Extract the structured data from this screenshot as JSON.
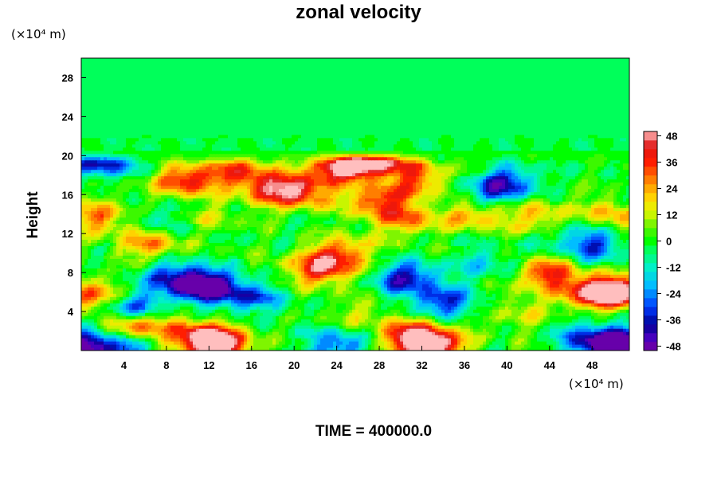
{
  "chart_data": {
    "type": "heatmap",
    "title": "zonal velocity",
    "ylabel": "Height",
    "xlabel": "",
    "x_unit": "(×10⁴ m)",
    "y_unit": "(×10⁴ m)",
    "footer": "TIME = 400000.0",
    "xlim": [
      0,
      51.5
    ],
    "ylim": [
      0,
      30
    ],
    "x_ticks": [
      4,
      8,
      12,
      16,
      20,
      24,
      28,
      32,
      36,
      40,
      44,
      48
    ],
    "y_ticks": [
      4,
      8,
      12,
      16,
      20,
      24,
      28
    ],
    "colorbar": {
      "min": -50,
      "max": 50,
      "step": 4,
      "tick_values": [
        48,
        36,
        24,
        12,
        0,
        -12,
        -24,
        -36,
        -48
      ]
    },
    "features": [
      {
        "x": 13,
        "y": 0.6,
        "v": 50
      },
      {
        "x": 11,
        "y": 1.5,
        "v": 38
      },
      {
        "x": 33,
        "y": 0.6,
        "v": 50
      },
      {
        "x": 31,
        "y": 1.6,
        "v": 38
      },
      {
        "x": 0,
        "y": 0.4,
        "v": -48
      },
      {
        "x": 4,
        "y": 0.5,
        "v": -30
      },
      {
        "x": 24,
        "y": 0.5,
        "v": -30
      },
      {
        "x": 51,
        "y": 0.8,
        "v": -48
      },
      {
        "x": 48,
        "y": 1.0,
        "v": -36
      },
      {
        "x": 5,
        "y": 2.4,
        "v": 40
      },
      {
        "x": 4.5,
        "y": 4.5,
        "v": -34
      },
      {
        "x": 12,
        "y": 6.5,
        "v": -50
      },
      {
        "x": 9,
        "y": 7.5,
        "v": -36
      },
      {
        "x": 16,
        "y": 5.5,
        "v": -26
      },
      {
        "x": 0.8,
        "y": 5.6,
        "v": 40
      },
      {
        "x": 22.5,
        "y": 8.5,
        "v": 40
      },
      {
        "x": 24.5,
        "y": 10,
        "v": 30
      },
      {
        "x": 30.5,
        "y": 7.5,
        "v": -40
      },
      {
        "x": 34,
        "y": 5,
        "v": -32
      },
      {
        "x": 38,
        "y": 9,
        "v": -18
      },
      {
        "x": 44,
        "y": 8,
        "v": 38
      },
      {
        "x": 48,
        "y": 6,
        "v": 36
      },
      {
        "x": 50.5,
        "y": 6,
        "v": 50
      },
      {
        "x": 41,
        "y": 4,
        "v": 14
      },
      {
        "x": 27,
        "y": 4,
        "v": 12
      },
      {
        "x": 1.8,
        "y": 19.6,
        "v": -44
      },
      {
        "x": 10,
        "y": 17.5,
        "v": 40
      },
      {
        "x": 15,
        "y": 18.5,
        "v": 32
      },
      {
        "x": 18,
        "y": 16.6,
        "v": 38
      },
      {
        "x": 21,
        "y": 16.3,
        "v": 34
      },
      {
        "x": 24,
        "y": 19,
        "v": 36
      },
      {
        "x": 26,
        "y": 19.4,
        "v": 42
      },
      {
        "x": 29,
        "y": 19.5,
        "v": 32
      },
      {
        "x": 28,
        "y": 15.5,
        "v": 36
      },
      {
        "x": 32,
        "y": 17.5,
        "v": 26
      },
      {
        "x": 40,
        "y": 17.5,
        "v": -30
      },
      {
        "x": 38.5,
        "y": 16,
        "v": -20
      },
      {
        "x": 37,
        "y": 14,
        "v": 24
      },
      {
        "x": 43,
        "y": 13.8,
        "v": 22
      },
      {
        "x": 47,
        "y": 12,
        "v": -16
      },
      {
        "x": 49.5,
        "y": 14,
        "v": 24
      },
      {
        "x": 2,
        "y": 13.8,
        "v": 30
      },
      {
        "x": 7,
        "y": 13.5,
        "v": -16
      },
      {
        "x": 12,
        "y": 14,
        "v": 10
      },
      {
        "x": 30.5,
        "y": 13.5,
        "v": 26
      },
      {
        "x": 48,
        "y": 10.5,
        "v": -26
      },
      {
        "x": 6.5,
        "y": 11,
        "v": 28
      }
    ]
  }
}
